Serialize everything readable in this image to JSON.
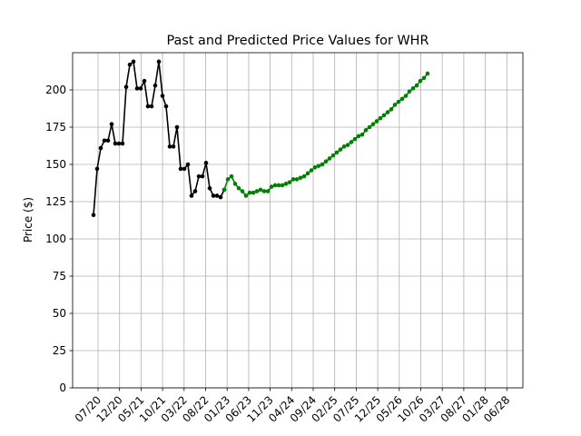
{
  "chart_data": {
    "type": "line",
    "title": "Past and Predicted Price Values for WHR",
    "xlabel": "",
    "ylabel": "Price ($)",
    "ylim": [
      0,
      225
    ],
    "yticks": [
      0,
      25,
      50,
      75,
      100,
      125,
      150,
      175,
      200
    ],
    "xticks": [
      "07/20",
      "12/20",
      "05/21",
      "10/21",
      "03/22",
      "08/22",
      "01/23",
      "06/23",
      "11/23",
      "04/24",
      "09/24",
      "02/25",
      "07/25",
      "12/25",
      "05/26",
      "10/26",
      "03/27",
      "08/27",
      "01/28",
      "06/28"
    ],
    "grid": true,
    "colors": {
      "past": "#000000",
      "predicted": "#008000",
      "grid": "#b0b0b0"
    },
    "series": [
      {
        "role": "past",
        "values": [
          116,
          147,
          161,
          166,
          166,
          177,
          164,
          164,
          164,
          202,
          217,
          219,
          201,
          201,
          206,
          189,
          189,
          203,
          219,
          196,
          189,
          162,
          162,
          175,
          147,
          147,
          150,
          129,
          132,
          142,
          142,
          151,
          134,
          129,
          129,
          128,
          133
        ]
      },
      {
        "role": "predicted",
        "values": [
          133,
          140,
          142,
          137,
          134,
          132,
          129,
          131,
          131,
          132,
          133,
          132,
          132,
          135,
          136,
          136,
          136,
          137,
          138,
          140,
          140,
          141,
          142,
          144,
          146,
          148,
          149,
          150,
          152,
          154,
          156,
          158,
          160,
          162,
          163,
          165,
          167,
          169,
          170,
          173,
          175,
          177,
          179,
          181,
          183,
          185,
          187,
          190,
          192,
          194,
          196,
          199,
          201,
          203,
          206,
          208,
          211
        ]
      }
    ]
  }
}
